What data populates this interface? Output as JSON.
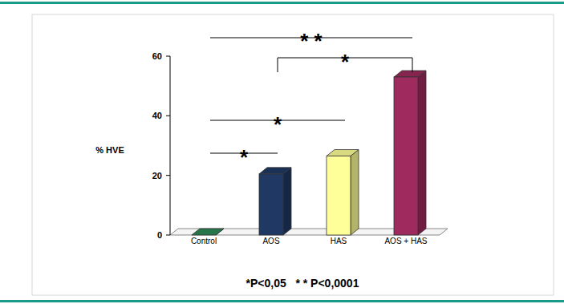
{
  "chart_data": {
    "type": "bar",
    "y_label": "% HVE",
    "categories": [
      "Control",
      "AOS",
      "HAS",
      "AOS + HAS"
    ],
    "values": [
      0,
      20.5,
      26.5,
      53
    ],
    "colors": [
      "#2e8b57",
      "#1f3864",
      "#ffff99",
      "#9e2a5e"
    ],
    "ylim": [
      0,
      60
    ],
    "yticks": [
      0,
      20,
      40,
      60
    ],
    "grid": false,
    "annotations": [
      {
        "text": "* *",
        "between": [
          "Control",
          "AOS + HAS"
        ]
      },
      {
        "text": "*",
        "between": [
          "AOS",
          "AOS + HAS"
        ]
      },
      {
        "text": "*",
        "between": [
          "Control",
          "HAS"
        ]
      },
      {
        "text": "*",
        "between": [
          "Control",
          "AOS"
        ]
      }
    ],
    "footnote": "*P<0,05   * * P<0,0001"
  }
}
